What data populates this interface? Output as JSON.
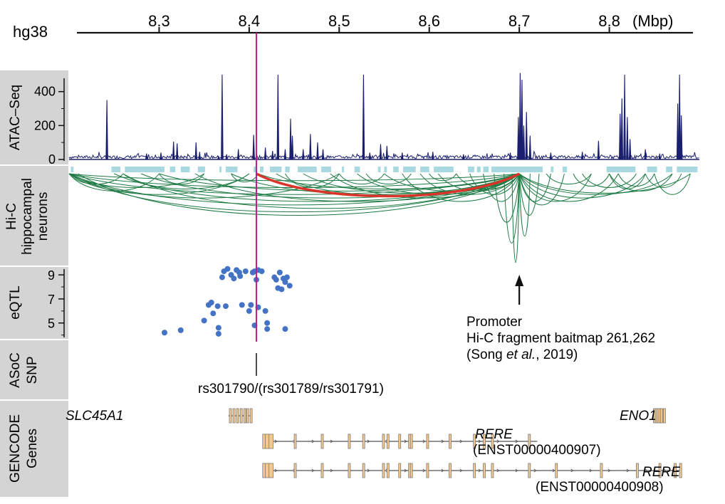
{
  "genome": {
    "assembly": "hg38",
    "unit": "(Mbp)",
    "ticks": [
      "8.3",
      "8.4",
      "8.5",
      "8.6",
      "8.7",
      "8.8"
    ],
    "tick_values": [
      8.3,
      8.4,
      8.5,
      8.6,
      8.7,
      8.8
    ],
    "range_mbp": [
      8.2,
      8.9
    ]
  },
  "tracks": {
    "atac": {
      "label": "ATAC–Seq",
      "yticks": [
        "400",
        "200",
        "0"
      ],
      "ytick_values": [
        400,
        200,
        0
      ],
      "ymax": 470,
      "color": "#1a1f6e",
      "peaks": [
        {
          "x": 8.242,
          "y": 350
        },
        {
          "x": 8.286,
          "y": 35
        },
        {
          "x": 8.302,
          "y": 40
        },
        {
          "x": 8.316,
          "y": 105
        },
        {
          "x": 8.32,
          "y": 95
        },
        {
          "x": 8.341,
          "y": 100
        },
        {
          "x": 8.345,
          "y": 45
        },
        {
          "x": 8.366,
          "y": 20
        },
        {
          "x": 8.37,
          "y": 500
        },
        {
          "x": 8.375,
          "y": 30
        },
        {
          "x": 8.388,
          "y": 60
        },
        {
          "x": 8.405,
          "y": 145
        },
        {
          "x": 8.418,
          "y": 70
        },
        {
          "x": 8.426,
          "y": 50
        },
        {
          "x": 8.432,
          "y": 500
        },
        {
          "x": 8.44,
          "y": 60
        },
        {
          "x": 8.446,
          "y": 240
        },
        {
          "x": 8.448,
          "y": 140
        },
        {
          "x": 8.46,
          "y": 60
        },
        {
          "x": 8.468,
          "y": 150
        },
        {
          "x": 8.476,
          "y": 100
        },
        {
          "x": 8.482,
          "y": 60
        },
        {
          "x": 8.527,
          "y": 500
        },
        {
          "x": 8.534,
          "y": 40
        },
        {
          "x": 8.546,
          "y": 90
        },
        {
          "x": 8.553,
          "y": 80
        },
        {
          "x": 8.57,
          "y": 40
        },
        {
          "x": 8.604,
          "y": 45
        },
        {
          "x": 8.638,
          "y": 30
        },
        {
          "x": 8.69,
          "y": 40
        },
        {
          "x": 8.699,
          "y": 250
        },
        {
          "x": 8.701,
          "y": 510
        },
        {
          "x": 8.703,
          "y": 470
        },
        {
          "x": 8.705,
          "y": 200
        },
        {
          "x": 8.708,
          "y": 280
        },
        {
          "x": 8.712,
          "y": 140
        },
        {
          "x": 8.735,
          "y": 40
        },
        {
          "x": 8.77,
          "y": 45
        },
        {
          "x": 8.788,
          "y": 110
        },
        {
          "x": 8.812,
          "y": 270
        },
        {
          "x": 8.814,
          "y": 360
        },
        {
          "x": 8.817,
          "y": 500
        },
        {
          "x": 8.82,
          "y": 250
        },
        {
          "x": 8.823,
          "y": 120
        },
        {
          "x": 8.84,
          "y": 60
        },
        {
          "x": 8.856,
          "y": 35
        },
        {
          "x": 8.876,
          "y": 330
        },
        {
          "x": 8.878,
          "y": 500
        },
        {
          "x": 8.88,
          "y": 260
        }
      ]
    },
    "hic": {
      "label": "Hi-C",
      "sublabel": "hippocampal",
      "sublabel2": "neurons",
      "fragment_color": "#a8d8e0",
      "loop_color": "#1e7a44",
      "highlight_color": "#d9352a",
      "fragments": [
        {
          "s": 8.202,
          "e": 8.205
        },
        {
          "s": 8.247,
          "e": 8.257
        },
        {
          "s": 8.262,
          "e": 8.306
        },
        {
          "s": 8.312,
          "e": 8.318
        },
        {
          "s": 8.324,
          "e": 8.334
        },
        {
          "s": 8.343,
          "e": 8.351
        },
        {
          "s": 8.367,
          "e": 8.369
        },
        {
          "s": 8.374,
          "e": 8.387
        },
        {
          "s": 8.405,
          "e": 8.408
        },
        {
          "s": 8.412,
          "e": 8.416
        },
        {
          "s": 8.423,
          "e": 8.436
        },
        {
          "s": 8.44,
          "e": 8.445
        },
        {
          "s": 8.454,
          "e": 8.475
        },
        {
          "s": 8.48,
          "e": 8.491
        },
        {
          "s": 8.503,
          "e": 8.505
        },
        {
          "s": 8.517,
          "e": 8.523
        },
        {
          "s": 8.543,
          "e": 8.546
        },
        {
          "s": 8.55,
          "e": 8.553
        },
        {
          "s": 8.56,
          "e": 8.566
        },
        {
          "s": 8.571,
          "e": 8.585
        },
        {
          "s": 8.59,
          "e": 8.6
        },
        {
          "s": 8.605,
          "e": 8.627
        },
        {
          "s": 8.643,
          "e": 8.65
        },
        {
          "s": 8.653,
          "e": 8.657
        },
        {
          "s": 8.66,
          "e": 8.666
        },
        {
          "s": 8.669,
          "e": 8.726
        },
        {
          "s": 8.735,
          "e": 8.738
        },
        {
          "s": 8.748,
          "e": 8.753
        },
        {
          "s": 8.797,
          "e": 8.829
        },
        {
          "s": 8.842,
          "e": 8.853
        },
        {
          "s": 8.863,
          "e": 8.87
        },
        {
          "s": 8.875,
          "e": 8.898
        }
      ],
      "bait": 8.7,
      "highlight_loop": {
        "from": 8.408,
        "to": 8.7
      },
      "loops": [
        {
          "a": 8.2,
          "b": 8.7,
          "d": 30
        },
        {
          "a": 8.2,
          "b": 8.7,
          "d": 20
        },
        {
          "a": 8.2,
          "b": 8.7,
          "d": 45
        },
        {
          "a": 8.2,
          "b": 8.7,
          "d": 55
        },
        {
          "a": 8.2,
          "b": 8.7,
          "d": 10
        },
        {
          "a": 8.21,
          "b": 8.7,
          "d": 60
        },
        {
          "a": 8.25,
          "b": 8.7,
          "d": 40
        },
        {
          "a": 8.28,
          "b": 8.7,
          "d": 35
        },
        {
          "a": 8.3,
          "b": 8.7,
          "d": 25
        },
        {
          "a": 8.34,
          "b": 8.7,
          "d": 40
        },
        {
          "a": 8.38,
          "b": 8.7,
          "d": 30
        },
        {
          "a": 8.41,
          "b": 8.7,
          "d": 22
        },
        {
          "a": 8.43,
          "b": 8.7,
          "d": 32
        },
        {
          "a": 8.46,
          "b": 8.7,
          "d": 28
        },
        {
          "a": 8.49,
          "b": 8.7,
          "d": 35
        },
        {
          "a": 8.52,
          "b": 8.7,
          "d": 30
        },
        {
          "a": 8.55,
          "b": 8.7,
          "d": 25
        },
        {
          "a": 8.57,
          "b": 8.7,
          "d": 40
        },
        {
          "a": 8.59,
          "b": 8.7,
          "d": 30
        },
        {
          "a": 8.61,
          "b": 8.7,
          "d": 25
        },
        {
          "a": 8.63,
          "b": 8.7,
          "d": 22
        },
        {
          "a": 8.645,
          "b": 8.7,
          "d": 30
        },
        {
          "a": 8.66,
          "b": 8.7,
          "d": 40
        },
        {
          "a": 8.672,
          "b": 8.7,
          "d": 70
        },
        {
          "a": 8.683,
          "b": 8.7,
          "d": 100
        },
        {
          "a": 8.692,
          "b": 8.7,
          "d": 128
        },
        {
          "a": 8.7,
          "b": 8.712,
          "d": 90
        },
        {
          "a": 8.7,
          "b": 8.722,
          "d": 60
        },
        {
          "a": 8.7,
          "b": 8.735,
          "d": 40
        },
        {
          "a": 8.7,
          "b": 8.75,
          "d": 45
        },
        {
          "a": 8.7,
          "b": 8.78,
          "d": 40
        },
        {
          "a": 8.7,
          "b": 8.81,
          "d": 40
        },
        {
          "a": 8.7,
          "b": 8.84,
          "d": 35
        },
        {
          "a": 8.7,
          "b": 8.87,
          "d": 30
        },
        {
          "a": 8.7,
          "b": 8.89,
          "d": 28
        },
        {
          "a": 8.2,
          "b": 8.26,
          "d": 15
        },
        {
          "a": 8.2,
          "b": 8.3,
          "d": 25
        },
        {
          "a": 8.2,
          "b": 8.35,
          "d": 20
        },
        {
          "a": 8.2,
          "b": 8.4,
          "d": 30
        },
        {
          "a": 8.26,
          "b": 8.4,
          "d": 22
        },
        {
          "a": 8.3,
          "b": 8.35,
          "d": 15
        },
        {
          "a": 8.38,
          "b": 8.41,
          "d": 12
        },
        {
          "a": 8.44,
          "b": 8.5,
          "d": 20
        },
        {
          "a": 8.5,
          "b": 8.55,
          "d": 15
        },
        {
          "a": 8.53,
          "b": 8.58,
          "d": 15
        },
        {
          "a": 8.6,
          "b": 8.63,
          "d": 10
        },
        {
          "a": 8.73,
          "b": 8.78,
          "d": 15
        },
        {
          "a": 8.76,
          "b": 8.8,
          "d": 18
        },
        {
          "a": 8.8,
          "b": 8.84,
          "d": 22
        },
        {
          "a": 8.8,
          "b": 8.87,
          "d": 25
        },
        {
          "a": 8.84,
          "b": 8.88,
          "d": 20
        },
        {
          "a": 8.85,
          "b": 8.89,
          "d": 30
        },
        {
          "a": 8.81,
          "b": 8.85,
          "d": 18
        },
        {
          "a": 8.77,
          "b": 8.83,
          "d": 20
        },
        {
          "a": 8.26,
          "b": 8.7,
          "d": 50
        },
        {
          "a": 8.2,
          "b": 8.5,
          "d": 35
        }
      ]
    },
    "eqtl": {
      "label": "eQTL",
      "yticks": [
        "9",
        "7",
        "5"
      ],
      "ytick_values": [
        9,
        7,
        5
      ],
      "ylim": [
        3.8,
        9.6
      ],
      "point_color": "#4472c4",
      "points": [
        {
          "x": 8.306,
          "y": 4.2
        },
        {
          "x": 8.324,
          "y": 4.4
        },
        {
          "x": 8.35,
          "y": 5.2
        },
        {
          "x": 8.355,
          "y": 6.5
        },
        {
          "x": 8.358,
          "y": 6.7
        },
        {
          "x": 8.36,
          "y": 5.8
        },
        {
          "x": 8.365,
          "y": 6.4
        },
        {
          "x": 8.366,
          "y": 4.6
        },
        {
          "x": 8.366,
          "y": 4.1
        },
        {
          "x": 8.37,
          "y": 8.8
        },
        {
          "x": 8.372,
          "y": 9.3
        },
        {
          "x": 8.374,
          "y": 6.4
        },
        {
          "x": 8.376,
          "y": 9.5
        },
        {
          "x": 8.38,
          "y": 9.0
        },
        {
          "x": 8.383,
          "y": 8.7
        },
        {
          "x": 8.386,
          "y": 9.4
        },
        {
          "x": 8.389,
          "y": 9.2
        },
        {
          "x": 8.39,
          "y": 8.9
        },
        {
          "x": 8.392,
          "y": 6.5
        },
        {
          "x": 8.396,
          "y": 9.3
        },
        {
          "x": 8.4,
          "y": 6.0
        },
        {
          "x": 8.402,
          "y": 6.5
        },
        {
          "x": 8.404,
          "y": 9.2
        },
        {
          "x": 8.406,
          "y": 9.3
        },
        {
          "x": 8.406,
          "y": 4.8
        },
        {
          "x": 8.408,
          "y": 8.6
        },
        {
          "x": 8.41,
          "y": 9.4
        },
        {
          "x": 8.41,
          "y": 6.3
        },
        {
          "x": 8.414,
          "y": 9.3
        },
        {
          "x": 8.418,
          "y": 6.0
        },
        {
          "x": 8.42,
          "y": 5.0
        },
        {
          "x": 8.42,
          "y": 4.5
        },
        {
          "x": 8.428,
          "y": 8.8
        },
        {
          "x": 8.43,
          "y": 8.6
        },
        {
          "x": 8.432,
          "y": 7.9
        },
        {
          "x": 8.434,
          "y": 9.2
        },
        {
          "x": 8.436,
          "y": 7.8
        },
        {
          "x": 8.438,
          "y": 8.7
        },
        {
          "x": 8.44,
          "y": 4.5
        },
        {
          "x": 8.442,
          "y": 8.8
        },
        {
          "x": 8.445,
          "y": 8.1
        },
        {
          "x": 8.44,
          "y": 8.4
        }
      ]
    },
    "asoc": {
      "label": "ASoC",
      "sublabel": "SNP"
    },
    "genes": {
      "label": "GENCODE",
      "sublabel": "Genes",
      "exon_color": "#f6c98a"
    }
  },
  "snp": {
    "position": 8.408,
    "line_color": "#c2198b",
    "label": "rs301790/(rs301789/rs301791)"
  },
  "annotation": {
    "line1": "Promoter",
    "line2": "Hi-C fragment baitmap 261,262",
    "line3_pre": "(Song ",
    "line3_it": "et al.",
    "line3_post": ", 2019)"
  },
  "genes": [
    {
      "name": "SLC45A1",
      "transcript": "",
      "start": 8.394,
      "end": 8.395,
      "exons": [
        8.378,
        8.382,
        8.386,
        8.39,
        8.394,
        8.397,
        8.401
      ]
    },
    {
      "name": "ENO1",
      "transcript": "",
      "start": 8.86,
      "end": 8.87,
      "exons": [
        8.849,
        8.851,
        8.853,
        8.855,
        8.857,
        8.86
      ]
    },
    {
      "name": "RERE",
      "transcript": "(ENST00000400907)",
      "start": 8.415,
      "end": 8.73,
      "exons": [
        8.415,
        8.418,
        8.422,
        8.45,
        8.48,
        8.51,
        8.526,
        8.548,
        8.553,
        8.566,
        8.577,
        8.579,
        8.597,
        8.622,
        8.649,
        8.66,
        8.669,
        8.71
      ]
    },
    {
      "name": "RERE",
      "transcript": "(ENST00000400908)",
      "start": 8.415,
      "end": 8.878,
      "exons": [
        8.415,
        8.418,
        8.422,
        8.45,
        8.48,
        8.51,
        8.526,
        8.548,
        8.553,
        8.566,
        8.577,
        8.579,
        8.597,
        8.622,
        8.649,
        8.66,
        8.669,
        8.71,
        8.74,
        8.79,
        8.83,
        8.855,
        8.872,
        8.878
      ]
    }
  ]
}
